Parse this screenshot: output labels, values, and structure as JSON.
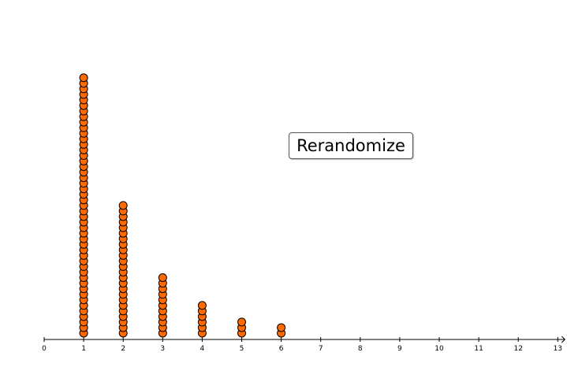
{
  "button": {
    "label": "Rerandomize"
  },
  "colors": {
    "dot_fill": "#ff6a00",
    "dot_stroke": "#000000",
    "axis": "#000000"
  },
  "chart_data": {
    "type": "dot plot",
    "x_range": [
      0,
      13
    ],
    "x_ticks": [
      "0",
      "1",
      "2",
      "3",
      "4",
      "5",
      "6",
      "7",
      "8",
      "9",
      "10",
      "11",
      "12",
      "13"
    ],
    "x": [
      1,
      2,
      3,
      4,
      5,
      6
    ],
    "counts": [
      47,
      24,
      11,
      6,
      3,
      2
    ],
    "grid": false
  }
}
